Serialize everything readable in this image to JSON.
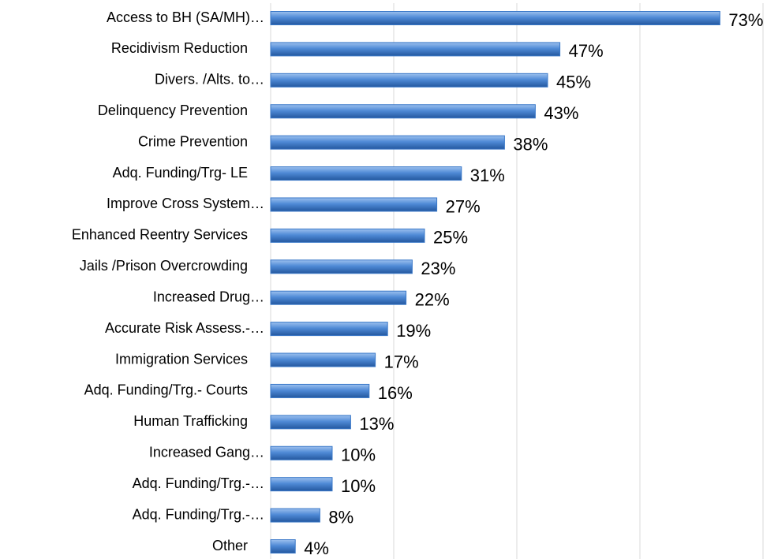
{
  "chart_data": {
    "type": "hbar",
    "categories": [
      "Access to BH (SA/MH)…",
      "Recidivism Reduction",
      "Divers. /Alts. to…",
      "Delinquency Prevention",
      "Crime Prevention",
      "Adq. Funding/Trg- LE",
      "Improve Cross System…",
      "Enhanced Reentry Services",
      "Jails /Prison Overcrowding",
      "Increased Drug…",
      "Accurate Risk Assess.-…",
      "Immigration Services",
      "Adq. Funding/Trg.- Courts",
      "Human Trafficking",
      "Increased Gang…",
      "Adq. Funding/Trg.-…",
      "Adq. Funding/Trg.-…",
      "Other"
    ],
    "values": [
      73,
      47,
      45,
      43,
      38,
      31,
      27,
      25,
      23,
      22,
      19,
      17,
      16,
      13,
      10,
      10,
      8,
      4
    ],
    "value_labels": [
      "73%",
      "47%",
      "45%",
      "43%",
      "38%",
      "31%",
      "27%",
      "25%",
      "23%",
      "22%",
      "19%",
      "17%",
      "16%",
      "13%",
      "10%",
      "10%",
      "8%",
      "4%"
    ],
    "color": "#3a78c8",
    "xlim": [
      0,
      80
    ],
    "xticks": [
      0,
      20,
      40,
      60,
      80
    ],
    "show_tick_labels": false,
    "grid": true
  }
}
